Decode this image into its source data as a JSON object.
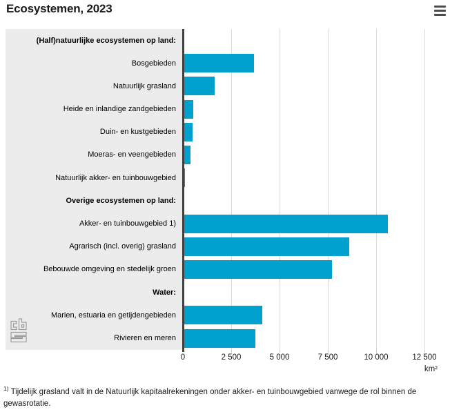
{
  "header": {
    "title": "Ecosystemen, 2023"
  },
  "menu": {
    "icon": "hamburger-icon"
  },
  "chart_data": {
    "type": "bar",
    "orientation": "horizontal",
    "title": "Ecosystemen, 2023",
    "unit": "km²",
    "bar_color": "#00a1cd",
    "label_panel_color": "#ececec",
    "gridline_color": "#d9d9d9",
    "axis_color": "#404040",
    "xlim": [
      0,
      12500
    ],
    "x_tick_labels": [
      "0",
      "2 500",
      "5 000",
      "7 500",
      "10 000",
      "12 500"
    ],
    "x_tick_values": [
      0,
      2500,
      5000,
      7500,
      10000,
      12500
    ],
    "grid": true,
    "legend": false,
    "rows": [
      {
        "label": "(Half)natuurlijke ecosystemen op land:",
        "type": "header"
      },
      {
        "label": "Bosgebieden",
        "value": 3610
      },
      {
        "label": "Natuurlijk grasland",
        "value": 1600
      },
      {
        "label": "Heide en inlandige zandgebieden",
        "value": 465
      },
      {
        "label": "Duin- en kustgebieden",
        "value": 445
      },
      {
        "label": "Moeras- en veengebieden",
        "value": 340
      },
      {
        "label": "Natuurlijk akker- en tuinbouwgebied",
        "value": 50
      },
      {
        "label": "Overige ecosystemen op land:",
        "type": "header"
      },
      {
        "label": "Akker- en tuinbouwgebied 1)",
        "value": 10560
      },
      {
        "label": "Agrarisch (incl. overig) grasland",
        "value": 8570
      },
      {
        "label": "Bebouwde omgeving en stedelijk groen",
        "value": 7650
      },
      {
        "label": "Water:",
        "type": "header"
      },
      {
        "label": "Marien, estuaria en getijdengebieden",
        "value": 4070
      },
      {
        "label": "Rivieren en meren",
        "value": 3700
      }
    ]
  },
  "footnote": {
    "marker": "1)",
    "text": "Tijdelijk grasland valt in de Natuurlijk kapitaalrekeningen onder akker- en tuinbouwgebied vanwege de rol binnen de gewasrotatie."
  },
  "logo": "cbs-logo"
}
